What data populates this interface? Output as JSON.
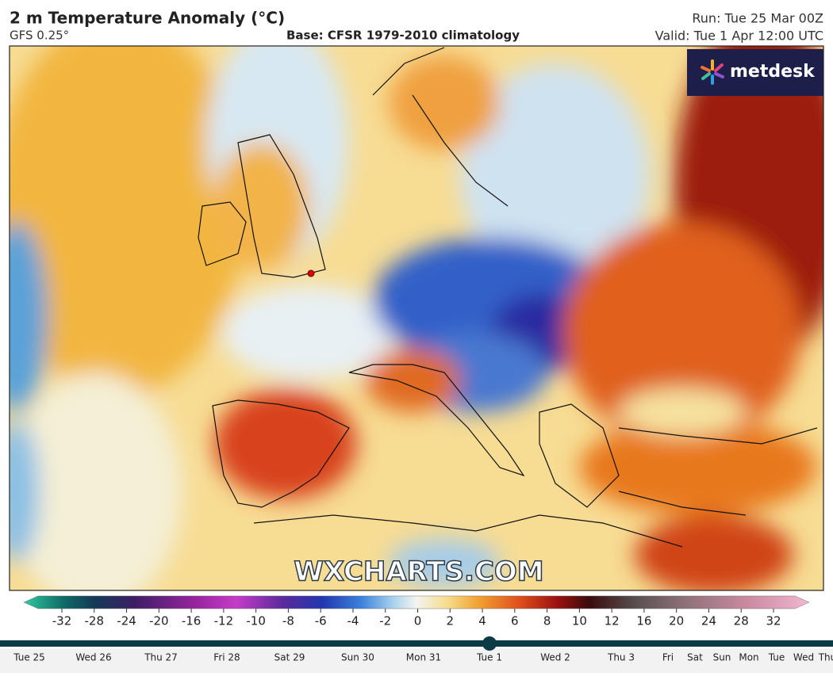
{
  "header": {
    "title": "2 m Temperature Anomaly (°C)",
    "model": "GFS 0.25°",
    "base": "Base: CFSR 1979-2010 climatology",
    "run": "Run: Tue 25 Mar 00Z",
    "valid": "Valid: Tue 1 Apr 12:00 UTC"
  },
  "map": {
    "logo": "metdesk",
    "watermark": "WXCHARTS.COM"
  },
  "colorbar": {
    "ticks": [
      -32,
      -28,
      -24,
      -20,
      -16,
      -12,
      -10,
      -8,
      -6,
      -4,
      -2,
      0,
      2,
      4,
      6,
      8,
      10,
      12,
      16,
      20,
      24,
      28,
      32
    ]
  },
  "timeline": {
    "labels": [
      "Tue 25",
      "Wed 26",
      "Thu 27",
      "Fri 28",
      "Sat 29",
      "Sun 30",
      "Mon 31",
      "Tue 1",
      "Wed 2",
      "Thu 3",
      "Fri",
      "Sat",
      "Sun",
      "Mon",
      "Tue",
      "Wed",
      "Thu"
    ],
    "selected": "Tue 1"
  }
}
